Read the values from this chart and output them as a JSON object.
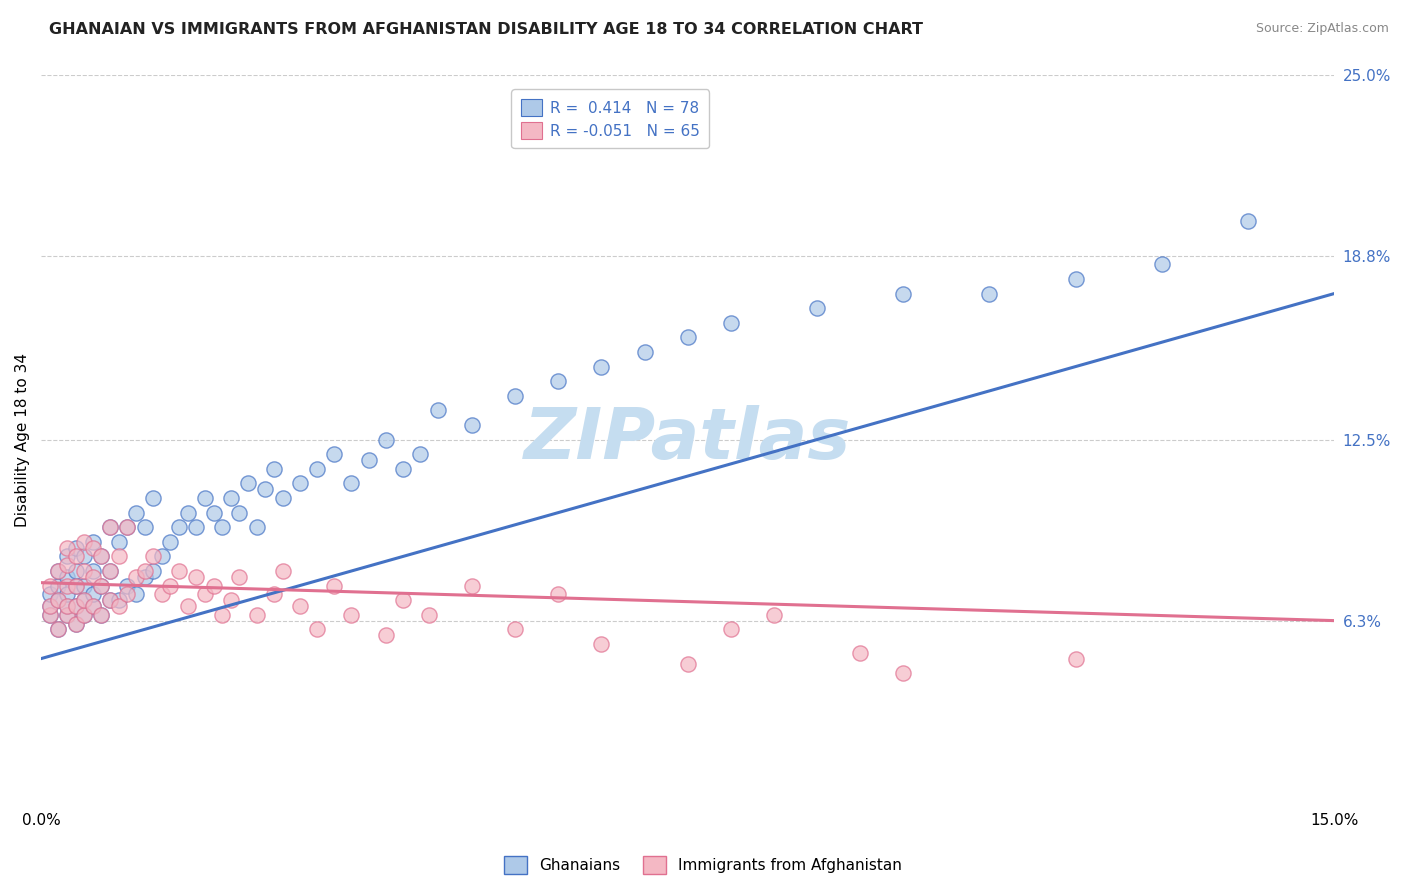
{
  "title": "GHANAIAN VS IMMIGRANTS FROM AFGHANISTAN DISABILITY AGE 18 TO 34 CORRELATION CHART",
  "source": "Source: ZipAtlas.com",
  "ylabel": "Disability Age 18 to 34",
  "watermark": "ZIPatlas",
  "xlim": [
    0.0,
    0.15
  ],
  "ylim": [
    0.0,
    0.25
  ],
  "xtick_labels": [
    "0.0%",
    "15.0%"
  ],
  "ytick_labels": [
    "6.3%",
    "12.5%",
    "18.8%",
    "25.0%"
  ],
  "ytick_values": [
    0.063,
    0.125,
    0.188,
    0.25
  ],
  "legend1_label": "R =  0.414   N = 78",
  "legend2_label": "R = -0.051   N = 65",
  "color_blue": "#aec9e8",
  "color_pink": "#f4b8c4",
  "line_blue": "#4472c4",
  "line_pink": "#e07090",
  "ghanaian_x": [
    0.001,
    0.001,
    0.001,
    0.002,
    0.002,
    0.002,
    0.002,
    0.003,
    0.003,
    0.003,
    0.003,
    0.003,
    0.004,
    0.004,
    0.004,
    0.004,
    0.004,
    0.005,
    0.005,
    0.005,
    0.005,
    0.006,
    0.006,
    0.006,
    0.006,
    0.007,
    0.007,
    0.007,
    0.008,
    0.008,
    0.008,
    0.009,
    0.009,
    0.01,
    0.01,
    0.011,
    0.011,
    0.012,
    0.012,
    0.013,
    0.013,
    0.014,
    0.015,
    0.016,
    0.017,
    0.018,
    0.019,
    0.02,
    0.021,
    0.022,
    0.023,
    0.024,
    0.025,
    0.026,
    0.027,
    0.028,
    0.03,
    0.032,
    0.034,
    0.036,
    0.038,
    0.04,
    0.042,
    0.044,
    0.046,
    0.05,
    0.055,
    0.06,
    0.065,
    0.07,
    0.075,
    0.08,
    0.09,
    0.1,
    0.11,
    0.12,
    0.13,
    0.14
  ],
  "ghanaian_y": [
    0.065,
    0.068,
    0.072,
    0.06,
    0.07,
    0.075,
    0.08,
    0.065,
    0.068,
    0.072,
    0.078,
    0.085,
    0.062,
    0.068,
    0.075,
    0.08,
    0.088,
    0.065,
    0.07,
    0.075,
    0.085,
    0.068,
    0.072,
    0.08,
    0.09,
    0.065,
    0.075,
    0.085,
    0.07,
    0.08,
    0.095,
    0.07,
    0.09,
    0.075,
    0.095,
    0.072,
    0.1,
    0.078,
    0.095,
    0.08,
    0.105,
    0.085,
    0.09,
    0.095,
    0.1,
    0.095,
    0.105,
    0.1,
    0.095,
    0.105,
    0.1,
    0.11,
    0.095,
    0.108,
    0.115,
    0.105,
    0.11,
    0.115,
    0.12,
    0.11,
    0.118,
    0.125,
    0.115,
    0.12,
    0.135,
    0.13,
    0.14,
    0.145,
    0.15,
    0.155,
    0.16,
    0.165,
    0.17,
    0.175,
    0.175,
    0.18,
    0.185,
    0.2
  ],
  "afghan_x": [
    0.001,
    0.001,
    0.001,
    0.002,
    0.002,
    0.002,
    0.003,
    0.003,
    0.003,
    0.003,
    0.003,
    0.004,
    0.004,
    0.004,
    0.004,
    0.005,
    0.005,
    0.005,
    0.005,
    0.006,
    0.006,
    0.006,
    0.007,
    0.007,
    0.007,
    0.008,
    0.008,
    0.008,
    0.009,
    0.009,
    0.01,
    0.01,
    0.011,
    0.012,
    0.013,
    0.014,
    0.015,
    0.016,
    0.017,
    0.018,
    0.019,
    0.02,
    0.021,
    0.022,
    0.023,
    0.025,
    0.027,
    0.028,
    0.03,
    0.032,
    0.034,
    0.036,
    0.04,
    0.042,
    0.045,
    0.05,
    0.055,
    0.06,
    0.065,
    0.075,
    0.08,
    0.085,
    0.095,
    0.1,
    0.12
  ],
  "afghan_y": [
    0.065,
    0.068,
    0.075,
    0.06,
    0.07,
    0.08,
    0.065,
    0.068,
    0.075,
    0.082,
    0.088,
    0.062,
    0.068,
    0.075,
    0.085,
    0.065,
    0.07,
    0.08,
    0.09,
    0.068,
    0.078,
    0.088,
    0.065,
    0.075,
    0.085,
    0.07,
    0.08,
    0.095,
    0.068,
    0.085,
    0.072,
    0.095,
    0.078,
    0.08,
    0.085,
    0.072,
    0.075,
    0.08,
    0.068,
    0.078,
    0.072,
    0.075,
    0.065,
    0.07,
    0.078,
    0.065,
    0.072,
    0.08,
    0.068,
    0.06,
    0.075,
    0.065,
    0.058,
    0.07,
    0.065,
    0.075,
    0.06,
    0.072,
    0.055,
    0.048,
    0.06,
    0.065,
    0.052,
    0.045,
    0.05
  ],
  "blue_line_x": [
    0.0,
    0.15
  ],
  "blue_line_y": [
    0.05,
    0.175
  ],
  "pink_line_x": [
    0.0,
    0.15
  ],
  "pink_line_y": [
    0.076,
    0.063
  ],
  "background_color": "#ffffff",
  "grid_color": "#cccccc",
  "title_fontsize": 11.5,
  "axis_label_fontsize": 11,
  "tick_fontsize": 11,
  "legend_fontsize": 11,
  "watermark_fontsize": 52,
  "watermark_color": "#c5ddf0",
  "bottom_legend": [
    "Ghanaians",
    "Immigrants from Afghanistan"
  ]
}
